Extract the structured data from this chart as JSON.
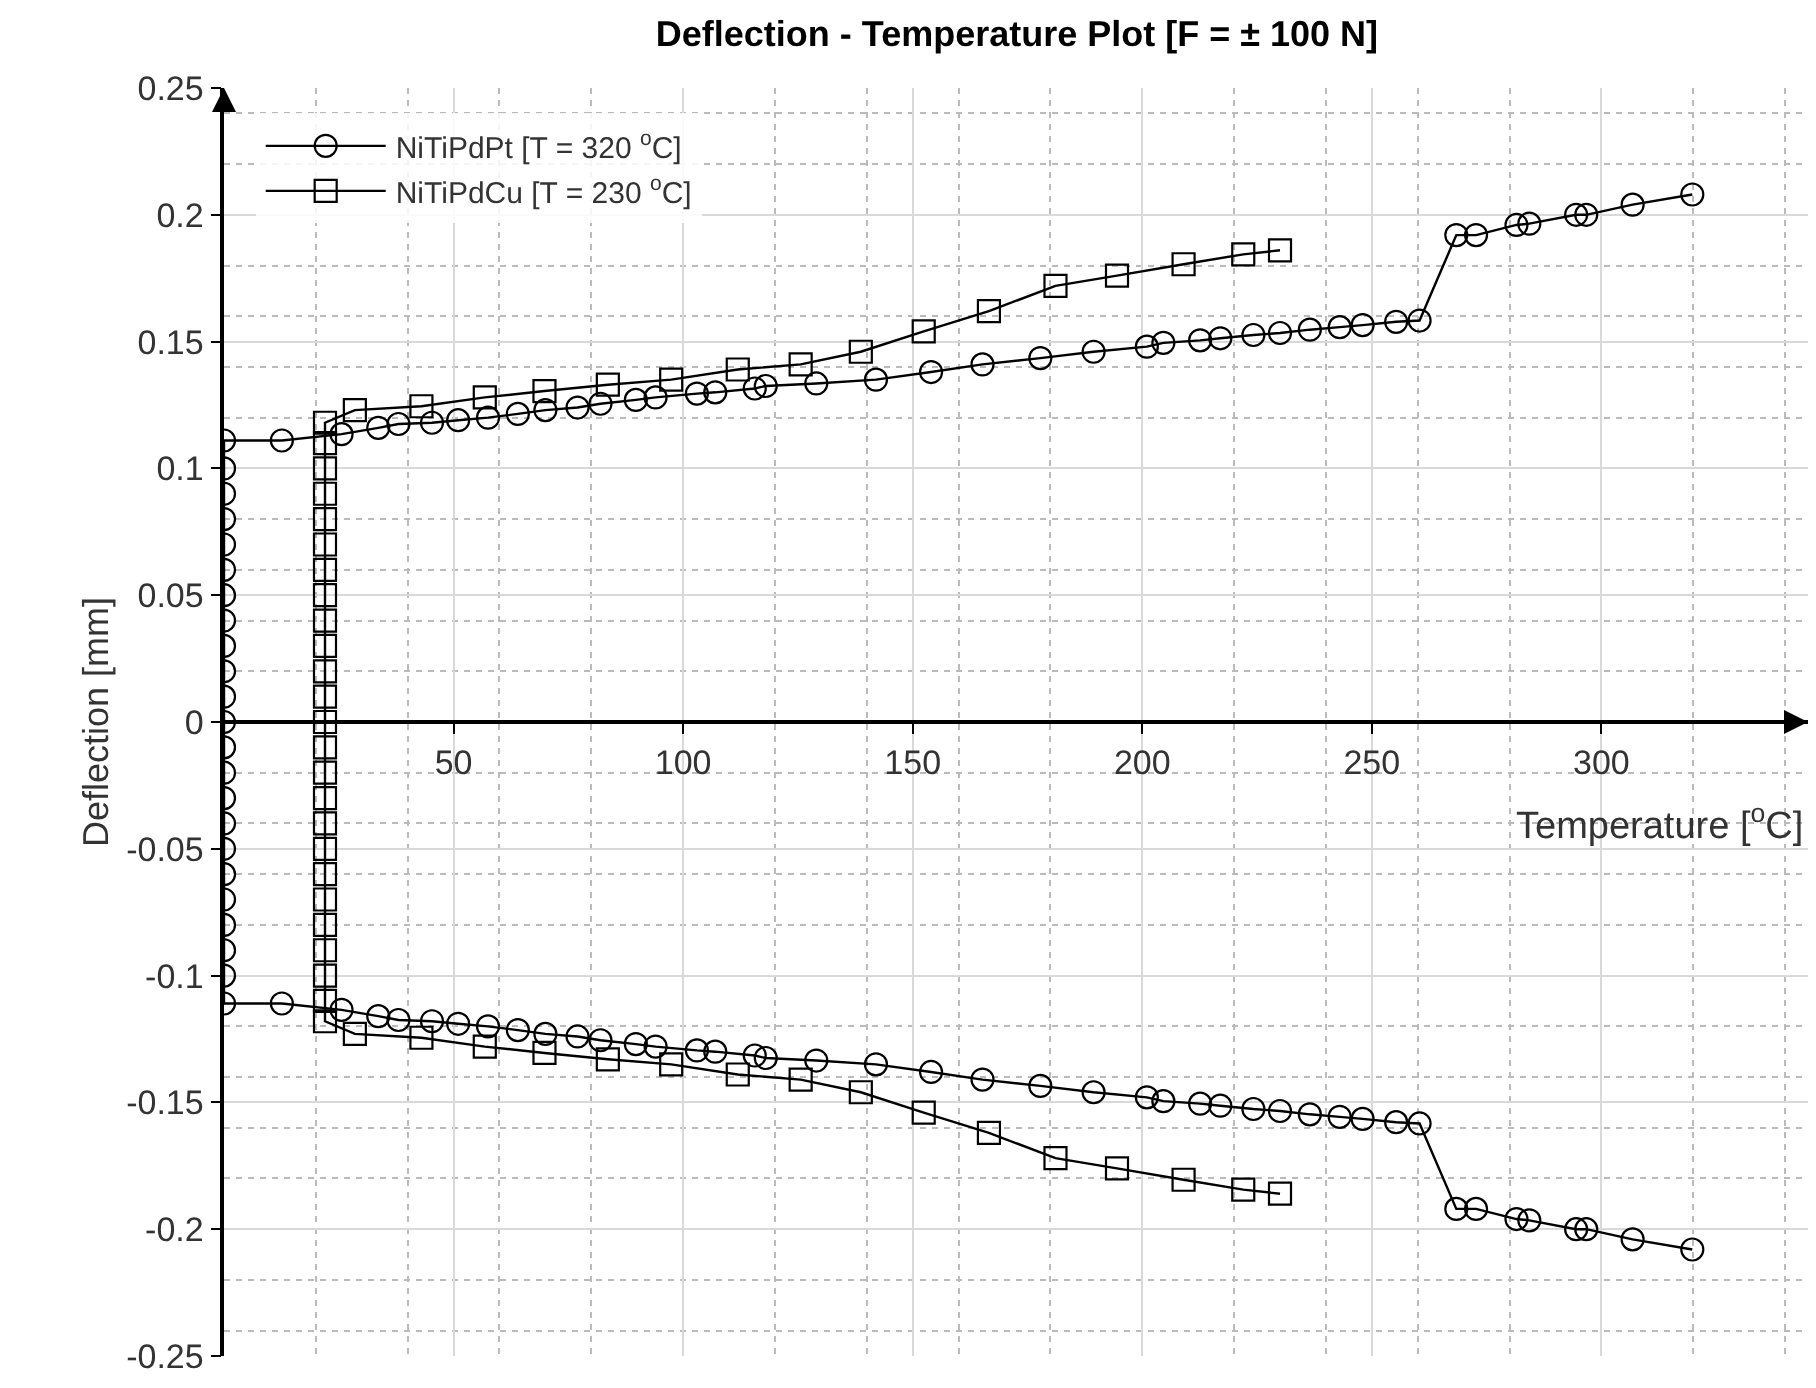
{
  "chart_data": {
    "type": "line",
    "title": "Deflection - Temperature Plot [F = ± 100 N]",
    "xlabel": "Temperature [$^{o}$C]",
    "ylabel": "Deflection [mm]",
    "xlim": [
      0,
      345
    ],
    "ylim": [
      -0.25,
      0.25
    ],
    "xticks": [
      50,
      100,
      150,
      200,
      250,
      300
    ],
    "yticks": [
      -0.25,
      -0.2,
      -0.15,
      -0.1,
      -0.05,
      0,
      0.05,
      0.1,
      0.15,
      0.2,
      0.25
    ],
    "grid": true,
    "legend": "top left",
    "line_style": "solid",
    "series": [
      {
        "name": "NiTiPdPt [T = 320 $^{o}$C]",
        "color": "#000000",
        "marker": "circle",
        "x": [
          319.8,
          306.8,
          296.7,
          294.5,
          284.3,
          281.5,
          272.7,
          268.4,
          260.4,
          255.3,
          248,
          243,
          236.5,
          230,
          224.2,
          217,
          212.6,
          204.6,
          201,
          189.4,
          177.8,
          165.2,
          154,
          142,
          129,
          118,
          115.6,
          107,
          103,
          94,
          89.7,
          82,
          77,
          70,
          64,
          57.5,
          51,
          45.3,
          38,
          33.6,
          25.6,
          12.6,
          0,
          0,
          0,
          0,
          0,
          0,
          0,
          0,
          0,
          0,
          0,
          0,
          0,
          0,
          0,
          0,
          0,
          0,
          0,
          0,
          0,
          0,
          0,
          12.6,
          25.6,
          33.6,
          38,
          45.3,
          51,
          57.5,
          64,
          70,
          77,
          82,
          89.7,
          94,
          103,
          107,
          115.6,
          118,
          129,
          142,
          154,
          165.2,
          177.8,
          189.4,
          201,
          204.6,
          212.6,
          217,
          224.2,
          230,
          236.5,
          243,
          248,
          255.3,
          260.4,
          268.4,
          272.7,
          281.5,
          284.3,
          294.5,
          296.7,
          306.8,
          319.8
        ],
        "values": [
          -0.208,
          -0.204,
          -0.2,
          -0.2,
          -0.1965,
          -0.196,
          -0.192,
          -0.192,
          -0.1583,
          -0.1578,
          -0.1565,
          -0.1557,
          -0.1547,
          -0.1534,
          -0.1526,
          -0.1513,
          -0.1505,
          -0.1495,
          -0.148,
          -0.146,
          -0.1435,
          -0.141,
          -0.138,
          -0.135,
          -0.1335,
          -0.1325,
          -0.1315,
          -0.13,
          -0.1295,
          -0.128,
          -0.127,
          -0.1255,
          -0.124,
          -0.123,
          -0.1215,
          -0.12,
          -0.119,
          -0.118,
          -0.1175,
          -0.116,
          -0.1135,
          -0.111,
          -0.111,
          -0.1,
          -0.09,
          -0.08,
          -0.07,
          -0.06,
          -0.05,
          -0.04,
          -0.03,
          -0.02,
          -0.01,
          0,
          0.01,
          0.02,
          0.03,
          0.04,
          0.05,
          0.06,
          0.07,
          0.08,
          0.09,
          0.1,
          0.111,
          0.111,
          0.1135,
          0.116,
          0.1175,
          0.118,
          0.119,
          0.12,
          0.1215,
          0.123,
          0.124,
          0.1255,
          0.127,
          0.128,
          0.1295,
          0.13,
          0.1315,
          0.1325,
          0.1335,
          0.135,
          0.138,
          0.141,
          0.1435,
          0.146,
          0.148,
          0.1495,
          0.1505,
          0.1513,
          0.1526,
          0.1534,
          0.1547,
          0.1557,
          0.1565,
          0.1578,
          0.1583,
          0.192,
          0.192,
          0.196,
          0.1965,
          0.2,
          0.2,
          0.204,
          0.208
        ]
      },
      {
        "name": "NiTiPdCu [T = 230 $^{o}$C]",
        "color": "#000000",
        "marker": "square",
        "x": [
          230,
          222,
          209,
          194.5,
          181.1,
          166.6,
          152.4,
          138.7,
          125.6,
          111.9,
          97.4,
          83.6,
          69.8,
          56.8,
          43,
          28.5,
          22,
          22,
          22,
          22,
          22,
          22,
          22,
          22,
          22,
          22,
          22,
          22,
          22,
          22,
          22,
          22,
          22,
          22,
          22,
          22,
          22,
          22,
          22,
          22,
          22,
          28.5,
          43,
          56.8,
          69.8,
          83.6,
          97.4,
          111.9,
          125.6,
          138.7,
          152.4,
          166.6,
          181.1,
          194.5,
          209,
          222,
          230
        ],
        "values": [
          -0.186,
          -0.1844,
          -0.1805,
          -0.176,
          -0.172,
          -0.162,
          -0.154,
          -0.146,
          -0.141,
          -0.139,
          -0.135,
          -0.133,
          -0.1305,
          -0.128,
          -0.1245,
          -0.123,
          -0.118,
          -0.11,
          -0.1,
          -0.09,
          -0.08,
          -0.07,
          -0.06,
          -0.05,
          -0.04,
          -0.03,
          -0.02,
          -0.01,
          0,
          0.01,
          0.02,
          0.03,
          0.04,
          0.05,
          0.06,
          0.07,
          0.08,
          0.09,
          0.1,
          0.11,
          0.118,
          0.123,
          0.1245,
          0.128,
          0.1305,
          0.133,
          0.135,
          0.139,
          0.141,
          0.146,
          0.154,
          0.162,
          0.172,
          0.176,
          0.1805,
          0.1844,
          0.186
        ]
      }
    ]
  }
}
